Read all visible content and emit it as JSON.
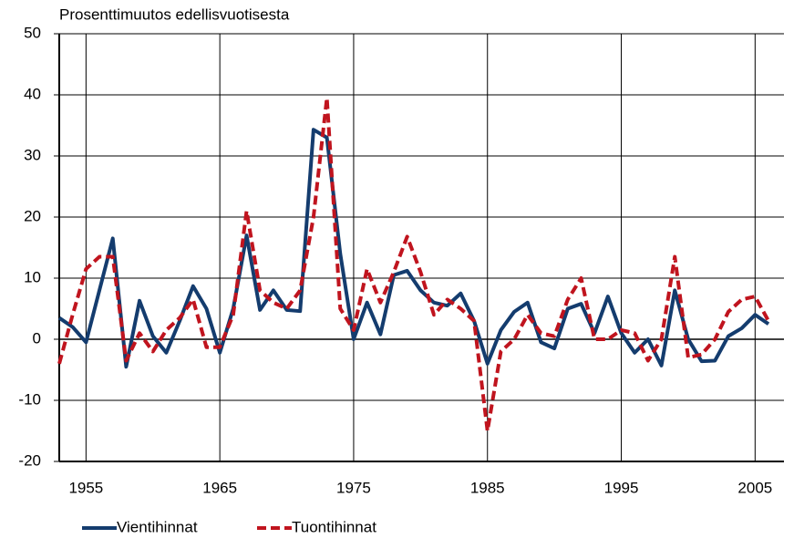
{
  "chart_data": {
    "type": "line",
    "title": "Prosenttimuutos edellisvuotisesta",
    "x": [
      1953,
      1954,
      1955,
      1956,
      1957,
      1958,
      1959,
      1960,
      1961,
      1962,
      1963,
      1964,
      1965,
      1966,
      1967,
      1968,
      1969,
      1970,
      1971,
      1972,
      1973,
      1974,
      1975,
      1976,
      1977,
      1978,
      1979,
      1980,
      1981,
      1982,
      1983,
      1984,
      1985,
      1986,
      1987,
      1988,
      1989,
      1990,
      1991,
      1992,
      1993,
      1994,
      1995,
      1996,
      1997,
      1998,
      1999,
      2000,
      2001,
      2002,
      2003,
      2004,
      2005,
      2006
    ],
    "series": [
      {
        "name": "Vientihinnat",
        "color": "#143c6e",
        "dash": false,
        "values": [
          3.5,
          2,
          -0.5,
          8,
          16.5,
          -4.5,
          6.3,
          0.5,
          -2.2,
          3,
          8.7,
          5,
          -2.2,
          5,
          17,
          4.8,
          8,
          4.8,
          4.6,
          34.3,
          33,
          14,
          0,
          6,
          0.8,
          10.5,
          11.2,
          8,
          6,
          5.5,
          7.5,
          3,
          -4,
          1.5,
          4.5,
          6,
          -0.5,
          -1.5,
          5,
          5.8,
          1,
          7,
          1,
          -2.2,
          0,
          -4.3,
          8,
          0,
          -3.6,
          -3.5,
          0.5,
          1.8,
          4,
          2.5
        ]
      },
      {
        "name": "Tuontihinnat",
        "color": "#c0141e",
        "dash": true,
        "values": [
          -4,
          4,
          11.5,
          13.5,
          13.5,
          -3.5,
          1,
          -2,
          1.5,
          3.5,
          6.5,
          -1.3,
          -1.3,
          4,
          21,
          8,
          6,
          5,
          8,
          20,
          39.5,
          5,
          1.5,
          11.5,
          6,
          11,
          16.8,
          11,
          4,
          6.5,
          5,
          3,
          -15,
          -2,
          0,
          4,
          1,
          0.5,
          6.5,
          10,
          0,
          0,
          1.5,
          1,
          -3.5,
          0,
          13.5,
          -3,
          -2.5,
          0,
          4.5,
          6.5,
          7,
          3
        ]
      }
    ],
    "xlim": [
      1953,
      2006
    ],
    "xticks": [
      1955,
      1965,
      1975,
      1985,
      1995,
      2005
    ],
    "ylim": [
      -20,
      50
    ],
    "yticks": [
      -20,
      -10,
      0,
      10,
      20,
      30,
      40,
      50
    ],
    "grid": true,
    "legend": "bottom"
  }
}
